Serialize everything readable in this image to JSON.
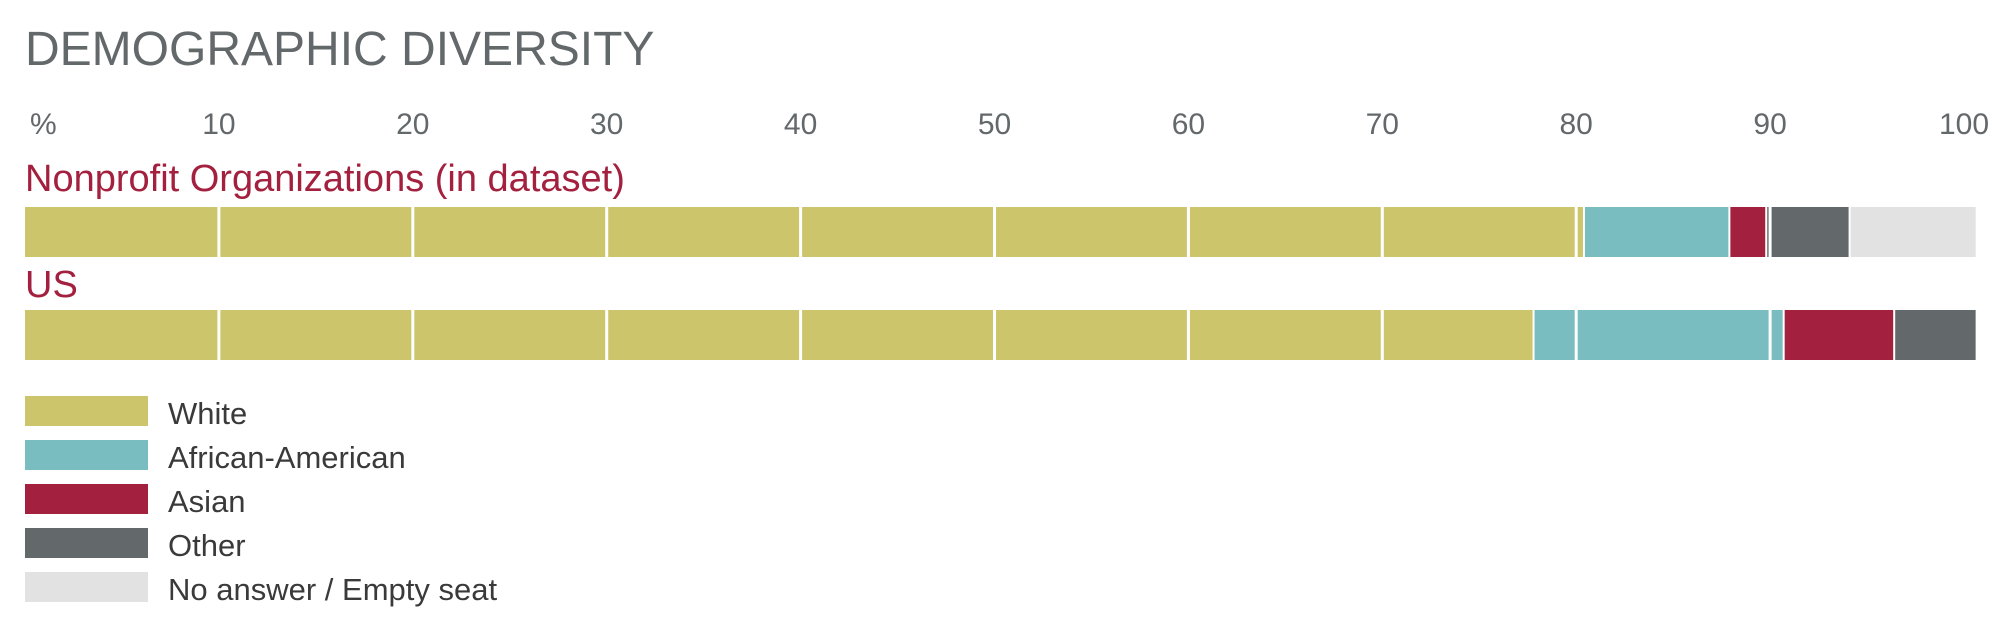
{
  "chart_data": {
    "type": "bar",
    "orientation": "horizontal",
    "stacked": true,
    "title": "DEMOGRAPHIC DIVERSITY",
    "axis_unit_label": "%",
    "x_ticks": [
      "10",
      "20",
      "30",
      "40",
      "50",
      "60",
      "70",
      "80",
      "90",
      "100"
    ],
    "xlim": [
      0,
      100
    ],
    "categories": [
      "Nonprofit Organizations (in dataset)",
      "US"
    ],
    "series": [
      {
        "name": "White",
        "color": "#cdc56c",
        "values": [
          80.4,
          77.8
        ]
      },
      {
        "name": "African-American",
        "color": "#79bdc1",
        "values": [
          7.5,
          12.9
        ]
      },
      {
        "name": "Asian",
        "color": "#a3203e",
        "values": [
          1.9,
          5.7
        ]
      },
      {
        "name": "Other",
        "color": "#63686b",
        "values": [
          4.3,
          4.2
        ]
      },
      {
        "name": "No answer / Empty seat",
        "color": "#e2e2e2",
        "values": [
          6.5,
          0
        ]
      }
    ],
    "legend_position": "bottom-left",
    "grid": "vertical white separators every 10%"
  }
}
